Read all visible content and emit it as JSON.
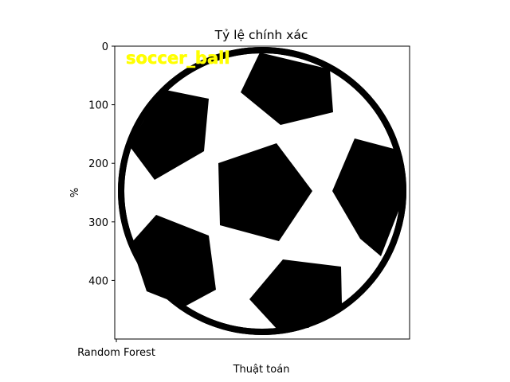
{
  "chart_data": {
    "type": "image",
    "title": "Tỷ lệ chính xác",
    "xlabel": "Thuật toán",
    "ylabel": "%",
    "x_ticks": [
      {
        "value": 0,
        "label": "Random Forest"
      }
    ],
    "y_ticks": [
      {
        "value": 0,
        "label": "0"
      },
      {
        "value": 100,
        "label": "100"
      },
      {
        "value": 200,
        "label": "200"
      },
      {
        "value": 300,
        "label": "300"
      },
      {
        "value": 400,
        "label": "400"
      }
    ],
    "xlim": [
      0,
      500
    ],
    "ylim": [
      0,
      500
    ],
    "y_inverted": true,
    "image": {
      "subject": "soccer-ball",
      "overlay_text": "soccer_ball",
      "overlay_color": "#ffff00"
    }
  }
}
